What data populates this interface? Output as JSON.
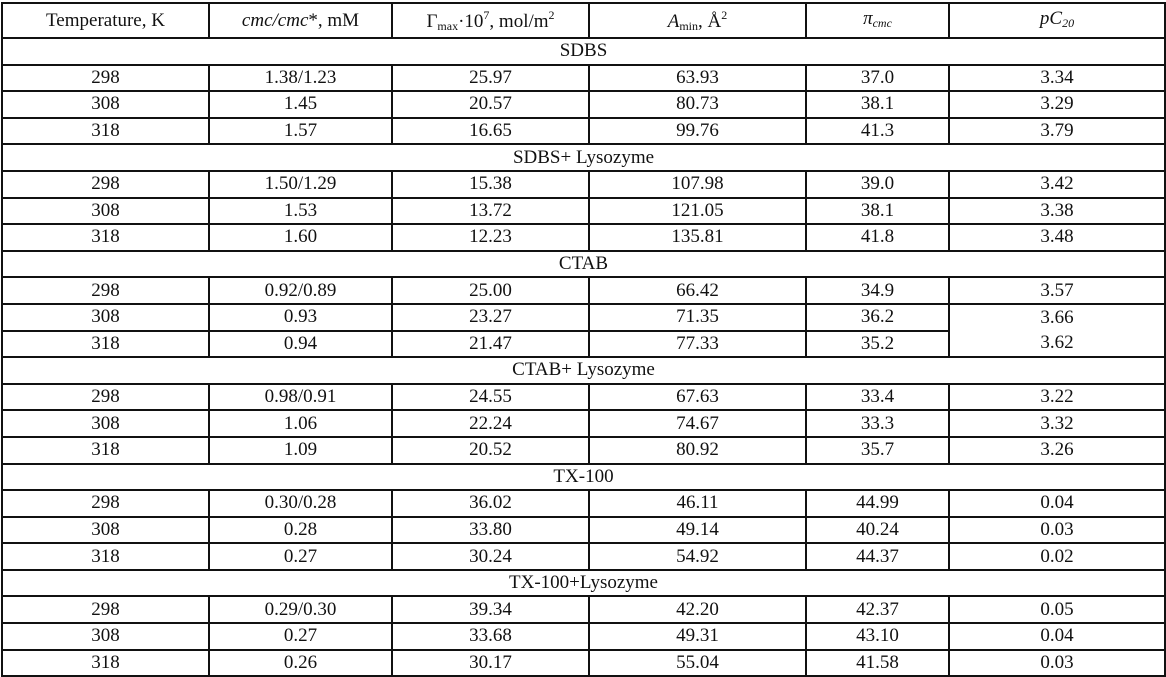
{
  "table": {
    "headers": {
      "temperature": "Temperature, K",
      "cmc_italic": "cmc/cmc",
      "cmc_rest": "*, mM",
      "gamma_main": "Γ",
      "gamma_sub": "max",
      "gamma_mid": "·10",
      "gamma_sup": "7",
      "gamma_unit": ", mol/m",
      "gamma_unit_sup": "2",
      "amin_main": "A",
      "amin_sub": "min",
      "amin_unit": ", Å",
      "amin_sup": "2",
      "pi_main": "π",
      "pi_sub": "cmc",
      "pc_main": "pC",
      "pc_sub": "20"
    },
    "groups": [
      {
        "name": "SDBS",
        "rows": [
          [
            "298",
            "1.38/1.23",
            "25.97",
            "63.93",
            "37.0",
            "3.34"
          ],
          [
            "308",
            "1.45",
            "20.57",
            "80.73",
            "38.1",
            "3.29"
          ],
          [
            "318",
            "1.57",
            "16.65",
            "99.76",
            "41.3",
            "3.79"
          ]
        ]
      },
      {
        "name": "SDBS+ Lysozyme",
        "rows": [
          [
            "298",
            "1.50/1.29",
            "15.38",
            "107.98",
            "39.0",
            "3.42"
          ],
          [
            "308",
            "1.53",
            "13.72",
            "121.05",
            "38.1",
            "3.38"
          ],
          [
            "318",
            "1.60",
            "12.23",
            "135.81",
            "41.8",
            "3.48"
          ]
        ]
      },
      {
        "name": "CTAB",
        "rows": [
          [
            "298",
            "0.92/0.89",
            "25.00",
            "66.42",
            "34.9",
            "3.57"
          ],
          [
            "308",
            "0.93",
            "23.27",
            "71.35",
            "36.2",
            "3.66"
          ],
          [
            "318",
            "0.94",
            "21.47",
            "77.33",
            "35.2",
            "3.62"
          ]
        ]
      },
      {
        "name": "CTAB+ Lysozyme",
        "rows": [
          [
            "298",
            "0.98/0.91",
            "24.55",
            "67.63",
            "33.4",
            "3.22"
          ],
          [
            "308",
            "1.06",
            "22.24",
            "74.67",
            "33.3",
            "3.32"
          ],
          [
            "318",
            "1.09",
            "20.52",
            "80.92",
            "35.7",
            "3.26"
          ]
        ]
      },
      {
        "name": "TX-100",
        "rows": [
          [
            "298",
            "0.30/0.28",
            "36.02",
            "46.11",
            "44.99",
            "0.04"
          ],
          [
            "308",
            "0.28",
            "33.80",
            "49.14",
            "40.24",
            "0.03"
          ],
          [
            "318",
            "0.27",
            "30.24",
            "54.92",
            "44.37",
            "0.02"
          ]
        ]
      },
      {
        "name": "TX-100+Lysozyme",
        "rows": [
          [
            "298",
            "0.29/0.30",
            "39.34",
            "42.20",
            "42.37",
            "0.05"
          ],
          [
            "308",
            "0.27",
            "33.68",
            "49.31",
            "43.10",
            "0.04"
          ],
          [
            "318",
            "0.26",
            "30.17",
            "55.04",
            "41.58",
            "0.03"
          ]
        ]
      }
    ]
  }
}
